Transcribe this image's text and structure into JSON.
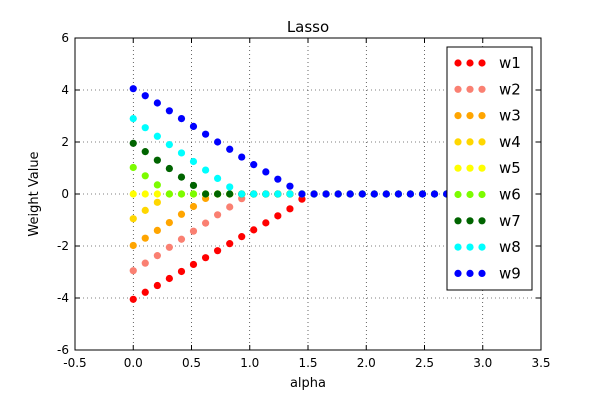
{
  "chart_data": {
    "type": "scatter",
    "title": "Lasso",
    "xlabel": "alpha",
    "ylabel": "Weight Value",
    "xlim": [
      -0.5,
      3.5
    ],
    "ylim": [
      -6,
      6
    ],
    "xticks": [
      "-0.5",
      "0.0",
      "0.5",
      "1.0",
      "1.5",
      "2.0",
      "2.5",
      "3.0",
      "3.5"
    ],
    "yticks": [
      "-6",
      "-4",
      "-2",
      "0",
      "2",
      "4",
      "6"
    ],
    "grid": true,
    "legend_position": "right",
    "x": [
      0.0,
      0.103,
      0.207,
      0.31,
      0.414,
      0.517,
      0.621,
      0.724,
      0.828,
      0.931,
      1.034,
      1.138,
      1.241,
      1.345,
      1.448,
      1.552,
      1.655,
      1.759,
      1.862,
      1.966,
      2.069,
      2.172,
      2.276,
      2.379,
      2.483,
      2.586,
      2.69,
      2.793,
      2.897,
      3.0
    ],
    "series": [
      {
        "name": "w1",
        "color": "#ff0000",
        "values": [
          -4.05,
          -3.78,
          -3.52,
          -3.25,
          -2.98,
          -2.71,
          -2.45,
          -2.18,
          -1.91,
          -1.64,
          -1.38,
          -1.11,
          -0.84,
          -0.57,
          -0.2,
          0,
          0,
          0,
          0,
          0,
          0,
          0,
          0,
          0,
          0,
          0,
          0,
          0,
          0,
          0
        ]
      },
      {
        "name": "w2",
        "color": "#fa8072",
        "values": [
          -2.95,
          -2.66,
          -2.37,
          -2.05,
          -1.74,
          -1.43,
          -1.12,
          -0.8,
          -0.5,
          -0.18,
          0,
          0,
          0,
          0,
          0,
          0,
          0,
          0,
          0,
          0,
          0,
          0,
          0,
          0,
          0,
          0,
          0,
          0,
          0,
          0
        ]
      },
      {
        "name": "w3",
        "color": "#ffa500",
        "values": [
          -1.98,
          -1.7,
          -1.4,
          -1.1,
          -0.78,
          -0.48,
          -0.17,
          0,
          0,
          0,
          0,
          0,
          0,
          0,
          0,
          0,
          0,
          0,
          0,
          0,
          0,
          0,
          0,
          0,
          0,
          0,
          0,
          0,
          0,
          0
        ]
      },
      {
        "name": "w4",
        "color": "#ffd700",
        "values": [
          -0.95,
          -0.63,
          -0.32,
          0,
          0,
          0,
          0,
          0,
          0,
          0,
          0,
          0,
          0,
          0,
          0,
          0,
          0,
          0,
          0,
          0,
          0,
          0,
          0,
          0,
          0,
          0,
          0,
          0,
          0,
          0
        ]
      },
      {
        "name": "w5",
        "color": "#ffff00",
        "values": [
          0,
          0,
          0,
          0,
          0,
          0,
          0,
          0,
          0,
          0,
          0,
          0,
          0,
          0,
          0,
          0,
          0,
          0,
          0,
          0,
          0,
          0,
          0,
          0,
          0,
          0,
          0,
          0,
          0,
          0
        ]
      },
      {
        "name": "w6",
        "color": "#7cfc00",
        "values": [
          1.02,
          0.7,
          0.35,
          0,
          0,
          0,
          0,
          0,
          0,
          0,
          0,
          0,
          0,
          0,
          0,
          0,
          0,
          0,
          0,
          0,
          0,
          0,
          0,
          0,
          0,
          0,
          0,
          0,
          0,
          0
        ]
      },
      {
        "name": "w7",
        "color": "#006400",
        "values": [
          1.95,
          1.63,
          1.3,
          0.98,
          0.65,
          0.33,
          0,
          0,
          0,
          0,
          0,
          0,
          0,
          0,
          0,
          0,
          0,
          0,
          0,
          0,
          0,
          0,
          0,
          0,
          0,
          0,
          0,
          0,
          0,
          0
        ]
      },
      {
        "name": "w8",
        "color": "#00ffff",
        "values": [
          2.9,
          2.55,
          2.22,
          1.9,
          1.58,
          1.25,
          0.92,
          0.6,
          0.27,
          0,
          0,
          0,
          0,
          0,
          0,
          0,
          0,
          0,
          0,
          0,
          0,
          0,
          0,
          0,
          0,
          0,
          0,
          0,
          0,
          0
        ]
      },
      {
        "name": "w9",
        "color": "#0000ff",
        "values": [
          4.05,
          3.78,
          3.5,
          3.2,
          2.9,
          2.6,
          2.3,
          2.0,
          1.72,
          1.42,
          1.13,
          0.85,
          0.57,
          0.3,
          0,
          0,
          0,
          0,
          0,
          0,
          0,
          0,
          0,
          0,
          0,
          0,
          0,
          0,
          0,
          0
        ]
      }
    ]
  }
}
